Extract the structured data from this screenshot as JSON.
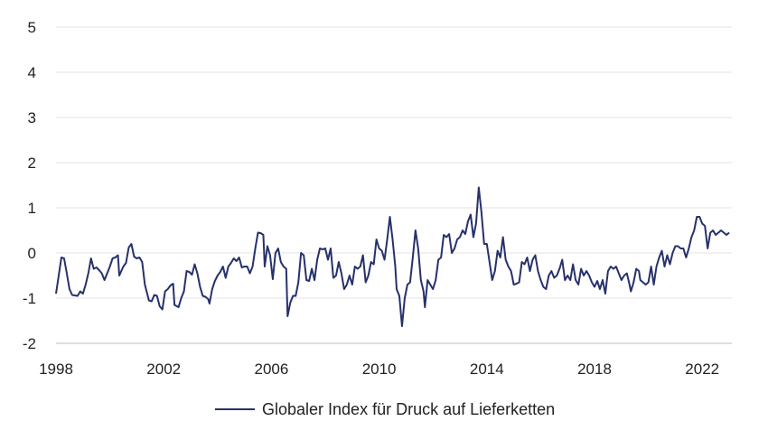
{
  "chart_data": {
    "type": "line",
    "title": "",
    "xlabel": "",
    "ylabel": "",
    "x_range": [
      1998,
      2023.1
    ],
    "ylim": [
      -2,
      5
    ],
    "x_ticks": [
      {
        "value": 1998,
        "label": "1998"
      },
      {
        "value": 2002,
        "label": "2002"
      },
      {
        "value": 2006,
        "label": "2006"
      },
      {
        "value": 2010,
        "label": "2010"
      },
      {
        "value": 2014,
        "label": "2014"
      },
      {
        "value": 2018,
        "label": "2018"
      },
      {
        "value": 2022,
        "label": "2022"
      }
    ],
    "y_ticks": [
      {
        "value": 5,
        "label": "5"
      },
      {
        "value": 4,
        "label": "4"
      },
      {
        "value": 3,
        "label": "3"
      },
      {
        "value": 2,
        "label": "2"
      },
      {
        "value": 1,
        "label": "1"
      },
      {
        "value": 0,
        "label": "0"
      },
      {
        "value": -1,
        "label": "-1"
      },
      {
        "value": -2,
        "label": "-2"
      }
    ],
    "grid": "horizontal",
    "legend_position": "bottom",
    "series": [
      {
        "name": "Globaler Index für Druck auf Lieferketten",
        "color": "#27316b",
        "points": [
          [
            1998.0,
            -0.9
          ],
          [
            1998.1,
            -0.5
          ],
          [
            1998.2,
            -0.1
          ],
          [
            1998.3,
            -0.12
          ],
          [
            1998.4,
            -0.45
          ],
          [
            1998.5,
            -0.8
          ],
          [
            1998.6,
            -0.93
          ],
          [
            1998.8,
            -0.95
          ],
          [
            1998.9,
            -0.85
          ],
          [
            1999.0,
            -0.9
          ],
          [
            1999.1,
            -0.7
          ],
          [
            1999.2,
            -0.45
          ],
          [
            1999.3,
            -0.12
          ],
          [
            1999.4,
            -0.35
          ],
          [
            1999.5,
            -0.32
          ],
          [
            1999.6,
            -0.38
          ],
          [
            1999.7,
            -0.45
          ],
          [
            1999.8,
            -0.6
          ],
          [
            1999.9,
            -0.45
          ],
          [
            2000.0,
            -0.3
          ],
          [
            2000.1,
            -0.12
          ],
          [
            2000.2,
            -0.1
          ],
          [
            2000.3,
            -0.05
          ],
          [
            2000.35,
            -0.5
          ],
          [
            2000.5,
            -0.3
          ],
          [
            2000.6,
            -0.22
          ],
          [
            2000.7,
            0.12
          ],
          [
            2000.8,
            0.2
          ],
          [
            2000.9,
            -0.08
          ],
          [
            2001.0,
            -0.12
          ],
          [
            2001.1,
            -0.1
          ],
          [
            2001.2,
            -0.2
          ],
          [
            2001.3,
            -0.7
          ],
          [
            2001.45,
            -1.05
          ],
          [
            2001.55,
            -1.07
          ],
          [
            2001.65,
            -0.93
          ],
          [
            2001.75,
            -0.95
          ],
          [
            2001.85,
            -1.18
          ],
          [
            2001.95,
            -1.25
          ],
          [
            2002.05,
            -0.85
          ],
          [
            2002.15,
            -0.8
          ],
          [
            2002.25,
            -0.72
          ],
          [
            2002.35,
            -0.68
          ],
          [
            2002.4,
            -1.15
          ],
          [
            2002.55,
            -1.2
          ],
          [
            2002.65,
            -1.0
          ],
          [
            2002.75,
            -0.85
          ],
          [
            2002.85,
            -0.4
          ],
          [
            2002.95,
            -0.42
          ],
          [
            2003.05,
            -0.48
          ],
          [
            2003.15,
            -0.25
          ],
          [
            2003.25,
            -0.45
          ],
          [
            2003.35,
            -0.75
          ],
          [
            2003.45,
            -0.95
          ],
          [
            2003.55,
            -0.97
          ],
          [
            2003.65,
            -1.02
          ],
          [
            2003.7,
            -1.12
          ],
          [
            2003.8,
            -0.8
          ],
          [
            2003.9,
            -0.62
          ],
          [
            2004.0,
            -0.5
          ],
          [
            2004.1,
            -0.42
          ],
          [
            2004.2,
            -0.3
          ],
          [
            2004.3,
            -0.55
          ],
          [
            2004.4,
            -0.3
          ],
          [
            2004.5,
            -0.22
          ],
          [
            2004.6,
            -0.12
          ],
          [
            2004.7,
            -0.18
          ],
          [
            2004.8,
            -0.1
          ],
          [
            2004.9,
            -0.32
          ],
          [
            2005.0,
            -0.3
          ],
          [
            2005.1,
            -0.3
          ],
          [
            2005.2,
            -0.45
          ],
          [
            2005.3,
            -0.3
          ],
          [
            2005.4,
            0.1
          ],
          [
            2005.5,
            0.45
          ],
          [
            2005.6,
            0.44
          ],
          [
            2005.7,
            0.4
          ],
          [
            2005.75,
            -0.3
          ],
          [
            2005.85,
            0.15
          ],
          [
            2005.95,
            -0.05
          ],
          [
            2006.05,
            -0.58
          ],
          [
            2006.15,
            0.0
          ],
          [
            2006.25,
            0.1
          ],
          [
            2006.35,
            -0.2
          ],
          [
            2006.45,
            -0.3
          ],
          [
            2006.55,
            -0.35
          ],
          [
            2006.6,
            -1.4
          ],
          [
            2006.7,
            -1.1
          ],
          [
            2006.8,
            -0.95
          ],
          [
            2006.9,
            -0.95
          ],
          [
            2007.0,
            -0.65
          ],
          [
            2007.1,
            0.0
          ],
          [
            2007.2,
            -0.05
          ],
          [
            2007.3,
            -0.6
          ],
          [
            2007.4,
            -0.62
          ],
          [
            2007.5,
            -0.35
          ],
          [
            2007.6,
            -0.6
          ],
          [
            2007.7,
            -0.15
          ],
          [
            2007.8,
            0.1
          ],
          [
            2007.9,
            0.08
          ],
          [
            2008.0,
            0.1
          ],
          [
            2008.1,
            -0.15
          ],
          [
            2008.2,
            0.1
          ],
          [
            2008.3,
            -0.55
          ],
          [
            2008.4,
            -0.5
          ],
          [
            2008.5,
            -0.2
          ],
          [
            2008.6,
            -0.45
          ],
          [
            2008.7,
            -0.8
          ],
          [
            2008.8,
            -0.7
          ],
          [
            2008.9,
            -0.5
          ],
          [
            2009.0,
            -0.7
          ],
          [
            2009.1,
            -0.3
          ],
          [
            2009.2,
            -0.35
          ],
          [
            2009.3,
            -0.3
          ],
          [
            2009.4,
            -0.05
          ],
          [
            2009.5,
            -0.65
          ],
          [
            2009.6,
            -0.5
          ],
          [
            2009.7,
            -0.2
          ],
          [
            2009.8,
            -0.25
          ],
          [
            2009.9,
            0.3
          ],
          [
            2010.0,
            0.1
          ],
          [
            2010.1,
            0.05
          ],
          [
            2010.2,
            -0.15
          ],
          [
            2010.3,
            0.3
          ],
          [
            2010.4,
            0.8
          ],
          [
            2010.5,
            0.3
          ],
          [
            2010.6,
            -0.3
          ],
          [
            2010.65,
            -0.8
          ],
          [
            2010.75,
            -0.95
          ],
          [
            2010.85,
            -1.62
          ],
          [
            2010.95,
            -1.0
          ],
          [
            2011.05,
            -0.7
          ],
          [
            2011.15,
            -0.65
          ],
          [
            2011.25,
            -0.1
          ],
          [
            2011.35,
            0.5
          ],
          [
            2011.45,
            0.1
          ],
          [
            2011.55,
            -0.6
          ],
          [
            2011.65,
            -0.85
          ],
          [
            2011.7,
            -1.2
          ],
          [
            2011.8,
            -0.6
          ],
          [
            2011.9,
            -0.7
          ],
          [
            2012.0,
            -0.8
          ],
          [
            2012.1,
            -0.6
          ],
          [
            2012.2,
            -0.15
          ],
          [
            2012.3,
            -0.1
          ],
          [
            2012.4,
            0.4
          ],
          [
            2012.5,
            0.35
          ],
          [
            2012.6,
            0.42
          ],
          [
            2012.7,
            0.0
          ],
          [
            2012.8,
            0.1
          ],
          [
            2012.9,
            0.3
          ],
          [
            2013.0,
            0.35
          ],
          [
            2013.1,
            0.5
          ],
          [
            2013.2,
            0.42
          ],
          [
            2013.3,
            0.7
          ],
          [
            2013.4,
            0.85
          ],
          [
            2013.5,
            0.35
          ],
          [
            2013.6,
            0.65
          ],
          [
            2013.7,
            1.45
          ],
          [
            2013.8,
            0.9
          ],
          [
            2013.9,
            0.2
          ],
          [
            2014.0,
            0.2
          ],
          [
            2014.1,
            -0.2
          ],
          [
            2014.2,
            -0.6
          ],
          [
            2014.3,
            -0.4
          ],
          [
            2014.4,
            0.05
          ],
          [
            2014.5,
            -0.1
          ],
          [
            2014.6,
            0.35
          ],
          [
            2014.7,
            -0.15
          ],
          [
            2014.8,
            -0.3
          ],
          [
            2014.9,
            -0.4
          ],
          [
            2015.0,
            -0.7
          ],
          [
            2015.1,
            -0.68
          ],
          [
            2015.2,
            -0.65
          ],
          [
            2015.3,
            -0.2
          ],
          [
            2015.4,
            -0.25
          ],
          [
            2015.5,
            -0.1
          ],
          [
            2015.6,
            -0.4
          ],
          [
            2015.7,
            -0.15
          ],
          [
            2015.8,
            -0.05
          ],
          [
            2015.9,
            -0.4
          ],
          [
            2016.0,
            -0.6
          ],
          [
            2016.1,
            -0.75
          ],
          [
            2016.2,
            -0.8
          ],
          [
            2016.3,
            -0.5
          ],
          [
            2016.4,
            -0.4
          ],
          [
            2016.5,
            -0.55
          ],
          [
            2016.6,
            -0.5
          ],
          [
            2016.7,
            -0.35
          ],
          [
            2016.8,
            -0.15
          ],
          [
            2016.9,
            -0.6
          ],
          [
            2017.0,
            -0.5
          ],
          [
            2017.1,
            -0.6
          ],
          [
            2017.2,
            -0.25
          ],
          [
            2017.3,
            -0.6
          ],
          [
            2017.4,
            -0.7
          ],
          [
            2017.5,
            -0.35
          ],
          [
            2017.6,
            -0.5
          ],
          [
            2017.7,
            -0.4
          ],
          [
            2017.8,
            -0.5
          ],
          [
            2017.9,
            -0.65
          ],
          [
            2018.0,
            -0.75
          ],
          [
            2018.1,
            -0.62
          ],
          [
            2018.2,
            -0.8
          ],
          [
            2018.3,
            -0.6
          ],
          [
            2018.4,
            -0.9
          ],
          [
            2018.5,
            -0.4
          ],
          [
            2018.6,
            -0.3
          ],
          [
            2018.7,
            -0.35
          ],
          [
            2018.8,
            -0.3
          ],
          [
            2018.9,
            -0.45
          ],
          [
            2019.0,
            -0.6
          ],
          [
            2019.1,
            -0.5
          ],
          [
            2019.2,
            -0.45
          ],
          [
            2019.3,
            -0.7
          ],
          [
            2019.35,
            -0.85
          ],
          [
            2019.45,
            -0.65
          ],
          [
            2019.55,
            -0.35
          ],
          [
            2019.65,
            -0.4
          ],
          [
            2019.7,
            -0.6
          ],
          [
            2019.8,
            -0.65
          ],
          [
            2019.9,
            -0.7
          ],
          [
            2020.0,
            -0.65
          ],
          [
            2020.1,
            -0.3
          ],
          [
            2020.2,
            -0.7
          ],
          [
            2020.3,
            -0.3
          ],
          [
            2020.4,
            -0.1
          ],
          [
            2020.5,
            0.05
          ],
          [
            2020.6,
            -0.3
          ],
          [
            2020.7,
            -0.05
          ],
          [
            2020.8,
            -0.25
          ],
          [
            2020.9,
            0.0
          ],
          [
            2021.0,
            0.15
          ],
          [
            2021.1,
            0.15
          ],
          [
            2021.2,
            0.1
          ],
          [
            2021.3,
            0.1
          ],
          [
            2021.4,
            -0.1
          ],
          [
            2021.5,
            0.1
          ],
          [
            2021.6,
            0.35
          ],
          [
            2021.7,
            0.5
          ],
          [
            2021.8,
            0.8
          ],
          [
            2021.9,
            0.8
          ],
          [
            2022.0,
            0.65
          ],
          [
            2022.1,
            0.6
          ],
          [
            2022.2,
            0.1
          ],
          [
            2022.3,
            0.45
          ],
          [
            2022.4,
            0.5
          ],
          [
            2022.5,
            0.4
          ],
          [
            2022.6,
            0.45
          ],
          [
            2022.7,
            0.5
          ],
          [
            2022.8,
            0.45
          ],
          [
            2022.9,
            0.4
          ],
          [
            2023.0,
            0.45
          ]
        ]
      }
    ]
  }
}
